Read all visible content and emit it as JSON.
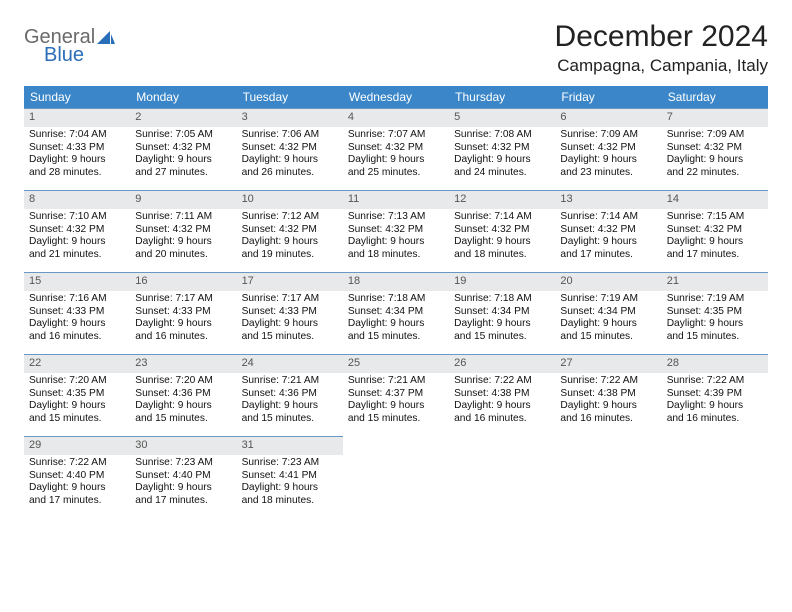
{
  "brand": {
    "part1": "General",
    "part2": "Blue"
  },
  "title": "December 2024",
  "location": "Campagna, Campania, Italy",
  "colors": {
    "header_bg": "#3a86c8",
    "header_text": "#ffffff",
    "cell_border": "#6a98c4",
    "daynum_bg": "#e8e9ea",
    "daynum_text": "#555555",
    "body_text": "#111111",
    "brand_gray": "#6a6a6a",
    "brand_blue": "#2a6db8",
    "page_bg": "#ffffff"
  },
  "layout": {
    "columns": 7,
    "header_fontsize": 12,
    "cell_fontsize": 10.2,
    "title_fontsize": 30,
    "location_fontsize": 17
  },
  "weekdays": [
    "Sunday",
    "Monday",
    "Tuesday",
    "Wednesday",
    "Thursday",
    "Friday",
    "Saturday"
  ],
  "days": [
    {
      "n": "1",
      "sr": "Sunrise: 7:04 AM",
      "ss": "Sunset: 4:33 PM",
      "dl1": "Daylight: 9 hours",
      "dl2": "and 28 minutes."
    },
    {
      "n": "2",
      "sr": "Sunrise: 7:05 AM",
      "ss": "Sunset: 4:32 PM",
      "dl1": "Daylight: 9 hours",
      "dl2": "and 27 minutes."
    },
    {
      "n": "3",
      "sr": "Sunrise: 7:06 AM",
      "ss": "Sunset: 4:32 PM",
      "dl1": "Daylight: 9 hours",
      "dl2": "and 26 minutes."
    },
    {
      "n": "4",
      "sr": "Sunrise: 7:07 AM",
      "ss": "Sunset: 4:32 PM",
      "dl1": "Daylight: 9 hours",
      "dl2": "and 25 minutes."
    },
    {
      "n": "5",
      "sr": "Sunrise: 7:08 AM",
      "ss": "Sunset: 4:32 PM",
      "dl1": "Daylight: 9 hours",
      "dl2": "and 24 minutes."
    },
    {
      "n": "6",
      "sr": "Sunrise: 7:09 AM",
      "ss": "Sunset: 4:32 PM",
      "dl1": "Daylight: 9 hours",
      "dl2": "and 23 minutes."
    },
    {
      "n": "7",
      "sr": "Sunrise: 7:09 AM",
      "ss": "Sunset: 4:32 PM",
      "dl1": "Daylight: 9 hours",
      "dl2": "and 22 minutes."
    },
    {
      "n": "8",
      "sr": "Sunrise: 7:10 AM",
      "ss": "Sunset: 4:32 PM",
      "dl1": "Daylight: 9 hours",
      "dl2": "and 21 minutes."
    },
    {
      "n": "9",
      "sr": "Sunrise: 7:11 AM",
      "ss": "Sunset: 4:32 PM",
      "dl1": "Daylight: 9 hours",
      "dl2": "and 20 minutes."
    },
    {
      "n": "10",
      "sr": "Sunrise: 7:12 AM",
      "ss": "Sunset: 4:32 PM",
      "dl1": "Daylight: 9 hours",
      "dl2": "and 19 minutes."
    },
    {
      "n": "11",
      "sr": "Sunrise: 7:13 AM",
      "ss": "Sunset: 4:32 PM",
      "dl1": "Daylight: 9 hours",
      "dl2": "and 18 minutes."
    },
    {
      "n": "12",
      "sr": "Sunrise: 7:14 AM",
      "ss": "Sunset: 4:32 PM",
      "dl1": "Daylight: 9 hours",
      "dl2": "and 18 minutes."
    },
    {
      "n": "13",
      "sr": "Sunrise: 7:14 AM",
      "ss": "Sunset: 4:32 PM",
      "dl1": "Daylight: 9 hours",
      "dl2": "and 17 minutes."
    },
    {
      "n": "14",
      "sr": "Sunrise: 7:15 AM",
      "ss": "Sunset: 4:32 PM",
      "dl1": "Daylight: 9 hours",
      "dl2": "and 17 minutes."
    },
    {
      "n": "15",
      "sr": "Sunrise: 7:16 AM",
      "ss": "Sunset: 4:33 PM",
      "dl1": "Daylight: 9 hours",
      "dl2": "and 16 minutes."
    },
    {
      "n": "16",
      "sr": "Sunrise: 7:17 AM",
      "ss": "Sunset: 4:33 PM",
      "dl1": "Daylight: 9 hours",
      "dl2": "and 16 minutes."
    },
    {
      "n": "17",
      "sr": "Sunrise: 7:17 AM",
      "ss": "Sunset: 4:33 PM",
      "dl1": "Daylight: 9 hours",
      "dl2": "and 15 minutes."
    },
    {
      "n": "18",
      "sr": "Sunrise: 7:18 AM",
      "ss": "Sunset: 4:34 PM",
      "dl1": "Daylight: 9 hours",
      "dl2": "and 15 minutes."
    },
    {
      "n": "19",
      "sr": "Sunrise: 7:18 AM",
      "ss": "Sunset: 4:34 PM",
      "dl1": "Daylight: 9 hours",
      "dl2": "and 15 minutes."
    },
    {
      "n": "20",
      "sr": "Sunrise: 7:19 AM",
      "ss": "Sunset: 4:34 PM",
      "dl1": "Daylight: 9 hours",
      "dl2": "and 15 minutes."
    },
    {
      "n": "21",
      "sr": "Sunrise: 7:19 AM",
      "ss": "Sunset: 4:35 PM",
      "dl1": "Daylight: 9 hours",
      "dl2": "and 15 minutes."
    },
    {
      "n": "22",
      "sr": "Sunrise: 7:20 AM",
      "ss": "Sunset: 4:35 PM",
      "dl1": "Daylight: 9 hours",
      "dl2": "and 15 minutes."
    },
    {
      "n": "23",
      "sr": "Sunrise: 7:20 AM",
      "ss": "Sunset: 4:36 PM",
      "dl1": "Daylight: 9 hours",
      "dl2": "and 15 minutes."
    },
    {
      "n": "24",
      "sr": "Sunrise: 7:21 AM",
      "ss": "Sunset: 4:36 PM",
      "dl1": "Daylight: 9 hours",
      "dl2": "and 15 minutes."
    },
    {
      "n": "25",
      "sr": "Sunrise: 7:21 AM",
      "ss": "Sunset: 4:37 PM",
      "dl1": "Daylight: 9 hours",
      "dl2": "and 15 minutes."
    },
    {
      "n": "26",
      "sr": "Sunrise: 7:22 AM",
      "ss": "Sunset: 4:38 PM",
      "dl1": "Daylight: 9 hours",
      "dl2": "and 16 minutes."
    },
    {
      "n": "27",
      "sr": "Sunrise: 7:22 AM",
      "ss": "Sunset: 4:38 PM",
      "dl1": "Daylight: 9 hours",
      "dl2": "and 16 minutes."
    },
    {
      "n": "28",
      "sr": "Sunrise: 7:22 AM",
      "ss": "Sunset: 4:39 PM",
      "dl1": "Daylight: 9 hours",
      "dl2": "and 16 minutes."
    },
    {
      "n": "29",
      "sr": "Sunrise: 7:22 AM",
      "ss": "Sunset: 4:40 PM",
      "dl1": "Daylight: 9 hours",
      "dl2": "and 17 minutes."
    },
    {
      "n": "30",
      "sr": "Sunrise: 7:23 AM",
      "ss": "Sunset: 4:40 PM",
      "dl1": "Daylight: 9 hours",
      "dl2": "and 17 minutes."
    },
    {
      "n": "31",
      "sr": "Sunrise: 7:23 AM",
      "ss": "Sunset: 4:41 PM",
      "dl1": "Daylight: 9 hours",
      "dl2": "and 18 minutes."
    }
  ],
  "trailing_empty": 4
}
